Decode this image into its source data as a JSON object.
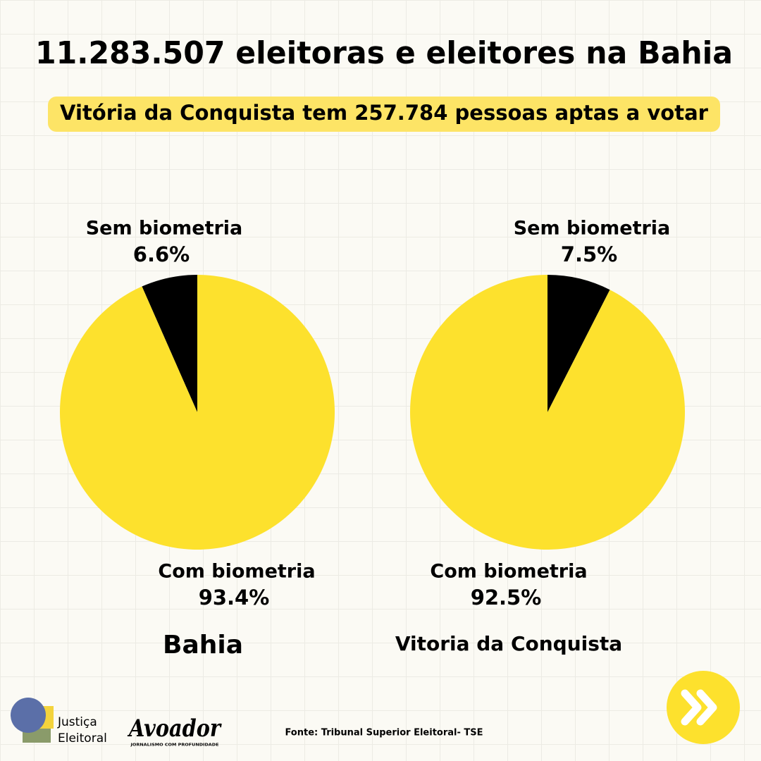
{
  "title": "11.283.507 eleitoras e eleitores na Bahia",
  "subtitle": "Vitória da Conquista tem 257.784 pessoas aptas a votar",
  "chart_data": [
    {
      "type": "pie",
      "title": "Bahia",
      "categories": [
        "Sem biometria",
        "Com biometria"
      ],
      "values": [
        6.6,
        93.4
      ],
      "value_labels": [
        "6.6%",
        "93.4%"
      ],
      "colors": [
        "#000000",
        "#fde12d"
      ],
      "counterclock": true
    },
    {
      "type": "pie",
      "title": "Vitoria da Conquista",
      "categories": [
        "Sem biometria",
        "Com biometria"
      ],
      "values": [
        7.5,
        92.5
      ],
      "value_labels": [
        "7.5%",
        "92.5%"
      ],
      "colors": [
        "#000000",
        "#fde12d"
      ],
      "counterclock": false
    }
  ],
  "footer": {
    "logo_line1": "Justiça",
    "logo_line2": "Eleitoral",
    "brand": "Avoador",
    "brand_tagline": "JORNALISMO COM PROFUNDIDADE",
    "source": "Fonte: Tribunal Superior Eleitoral- TSE"
  }
}
